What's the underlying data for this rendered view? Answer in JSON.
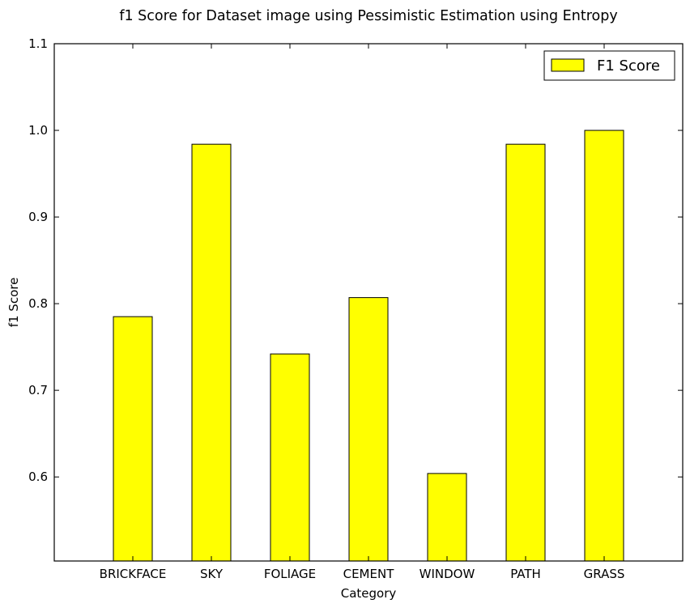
{
  "chart_data": {
    "type": "bar",
    "title": "f1 Score for Dataset image using Pessimistic Estimation using Entropy",
    "xlabel": "Category",
    "ylabel": "f1 Score",
    "categories": [
      "BRICKFACE",
      "SKY",
      "FOLIAGE",
      "CEMENT",
      "WINDOW",
      "PATH",
      "GRASS"
    ],
    "series": [
      {
        "name": "F1 Score",
        "values": [
          0.785,
          0.984,
          0.742,
          0.807,
          0.604,
          0.984,
          1.0
        ]
      }
    ],
    "ylim": [
      0.503,
      1.1
    ],
    "yticks": [
      "0.6",
      "0.7",
      "0.8",
      "0.9",
      "1.0",
      "1.1"
    ],
    "grid": false,
    "legend_position": "top-right",
    "colors": {
      "bar_fill": "#ffff00",
      "bar_edge": "#000000",
      "axes": "#000000",
      "background": "#ffffff"
    }
  }
}
